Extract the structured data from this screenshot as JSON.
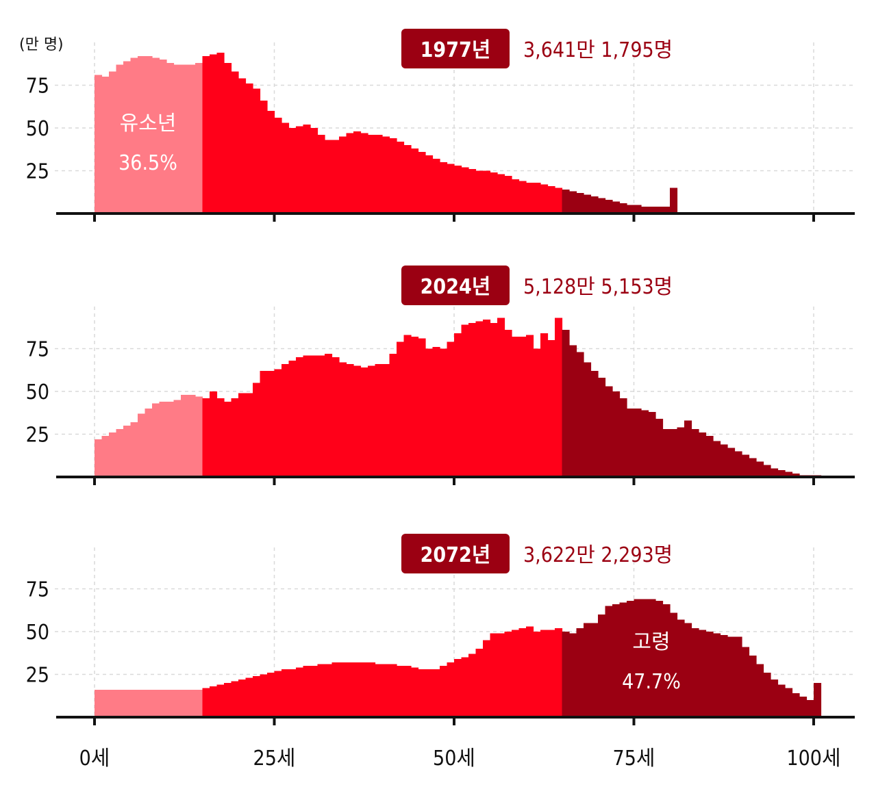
{
  "chart_data": {
    "type": "bar",
    "unit_label": "(만 명)",
    "x_ticks": [
      "0세",
      "25세",
      "50세",
      "75세",
      "100세"
    ],
    "y_ticks": [
      "25",
      "50",
      "75"
    ],
    "x_range": [
      0,
      100
    ],
    "y_range": [
      0,
      100
    ],
    "colors": {
      "youth": "#ff7b86",
      "working": "#ff0019",
      "elderly": "#9b0012",
      "badge": "#9b0012",
      "total_text": "#9b0012"
    },
    "panels": [
      {
        "year": "1977년",
        "total": "3,641만 1,795명",
        "inner_label": {
          "group": "youth",
          "lines": [
            "유소년",
            "36.5%"
          ]
        },
        "values": [
          81,
          80,
          83,
          87,
          89,
          91,
          92,
          92,
          91,
          90,
          88,
          87,
          87,
          87,
          88,
          92,
          93,
          94,
          88,
          83,
          79,
          76,
          73,
          66,
          60,
          56,
          53,
          50,
          51,
          52,
          50,
          46,
          43,
          43,
          45,
          47,
          48,
          47,
          46,
          46,
          45,
          44,
          42,
          40,
          38,
          36,
          34,
          32,
          30,
          29,
          28,
          27,
          26,
          25,
          25,
          24,
          23,
          22,
          20,
          19,
          18,
          18,
          17,
          16,
          15,
          14,
          13,
          12,
          11,
          10,
          9,
          8,
          7,
          6,
          5,
          5,
          4,
          4,
          4,
          4,
          15,
          0,
          0,
          0,
          0,
          0,
          0,
          0,
          0,
          0,
          0,
          0,
          0,
          0,
          0,
          0,
          0,
          0,
          0,
          0,
          0
        ]
      },
      {
        "year": "2024년",
        "total": "5,128만 5,153명",
        "inner_label": null,
        "values": [
          22,
          24,
          26,
          28,
          30,
          32,
          37,
          40,
          43,
          44,
          44,
          45,
          48,
          48,
          47,
          46,
          50,
          46,
          44,
          46,
          49,
          49,
          55,
          62,
          62,
          63,
          66,
          68,
          70,
          71,
          71,
          71,
          72,
          70,
          67,
          66,
          65,
          64,
          65,
          66,
          66,
          72,
          79,
          83,
          82,
          81,
          75,
          76,
          75,
          79,
          84,
          89,
          90,
          91,
          92,
          90,
          93,
          86,
          82,
          82,
          83,
          75,
          84,
          80,
          93,
          86,
          77,
          73,
          67,
          62,
          58,
          53,
          50,
          46,
          40,
          40,
          39,
          38,
          34,
          28,
          28,
          29,
          33,
          28,
          26,
          24,
          21,
          19,
          17,
          15,
          13,
          11,
          9,
          7,
          5,
          4,
          3,
          2,
          1,
          1,
          1
        ]
      },
      {
        "year": "2072년",
        "total": "3,622만 2,293명",
        "inner_label": {
          "group": "elderly",
          "lines": [
            "고령",
            "47.7%"
          ]
        },
        "values": [
          16,
          16,
          16,
          16,
          16,
          16,
          16,
          16,
          16,
          16,
          16,
          16,
          16,
          16,
          16,
          17,
          18,
          19,
          20,
          21,
          22,
          23,
          24,
          25,
          26,
          27,
          28,
          28,
          29,
          30,
          30,
          31,
          31,
          32,
          32,
          32,
          32,
          32,
          32,
          31,
          31,
          31,
          30,
          30,
          29,
          28,
          28,
          28,
          30,
          32,
          34,
          35,
          37,
          40,
          45,
          49,
          49,
          50,
          51,
          52,
          53,
          50,
          51,
          51,
          52,
          50,
          49,
          52,
          55,
          55,
          60,
          65,
          66,
          67,
          68,
          69,
          69,
          69,
          68,
          66,
          61,
          57,
          55,
          52,
          51,
          50,
          49,
          48,
          47,
          47,
          41,
          36,
          31,
          26,
          22,
          19,
          17,
          14,
          12,
          10,
          20
        ]
      }
    ]
  }
}
